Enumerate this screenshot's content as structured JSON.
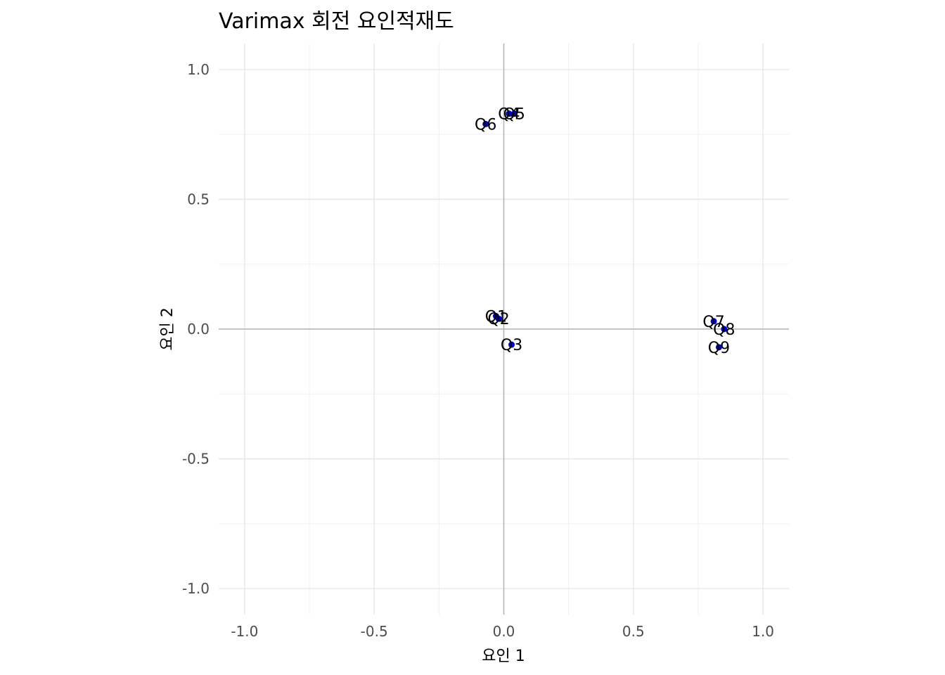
{
  "chart_data": {
    "type": "scatter",
    "title": "Varimax 회전 요인적재도",
    "xlabel": "요인 1",
    "ylabel": "요인 2",
    "xlim": [
      -1.1,
      1.1
    ],
    "ylim": [
      -1.1,
      1.1
    ],
    "xticks": [
      -1.0,
      -0.5,
      0.0,
      0.5,
      1.0
    ],
    "yticks": [
      -1.0,
      -0.5,
      0.0,
      0.5,
      1.0
    ],
    "x_tick_labels": [
      "-1.0",
      "-0.5",
      "0.0",
      "0.5",
      "1.0"
    ],
    "y_tick_labels": [
      "-1.0",
      "-0.5",
      "0.0",
      "0.5",
      "1.0"
    ],
    "grid": true,
    "zero_lines": true,
    "point_color": "#0000cc",
    "points": [
      {
        "label": "Q1",
        "x": -0.03,
        "y": 0.05
      },
      {
        "label": "Q2",
        "x": -0.02,
        "y": 0.04
      },
      {
        "label": "Q3",
        "x": 0.03,
        "y": -0.06
      },
      {
        "label": "Q4",
        "x": 0.02,
        "y": 0.83
      },
      {
        "label": "Q5",
        "x": 0.04,
        "y": 0.83
      },
      {
        "label": "Q6",
        "x": -0.07,
        "y": 0.79
      },
      {
        "label": "Q7",
        "x": 0.81,
        "y": 0.03
      },
      {
        "label": "Q8",
        "x": 0.85,
        "y": 0.0
      },
      {
        "label": "Q9",
        "x": 0.83,
        "y": -0.07
      }
    ]
  }
}
